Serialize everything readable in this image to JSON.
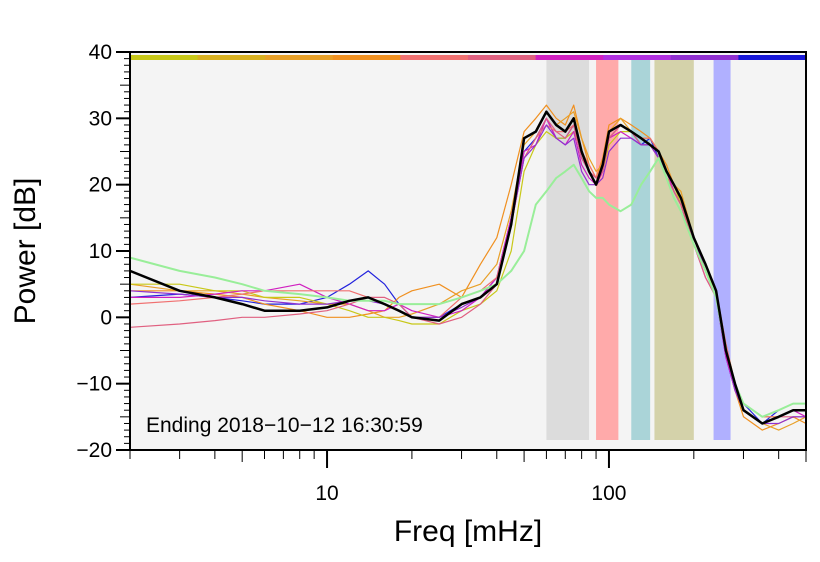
{
  "chart_data": {
    "type": "line",
    "xlabel": "Freq [mHz]",
    "ylabel": "Power [dB]",
    "xscale": "log",
    "xlim": [
      2.0,
      500
    ],
    "ylim": [
      -20,
      40
    ],
    "x_tick_labels": [
      {
        "value": 10,
        "label": "10"
      },
      {
        "value": 100,
        "label": "100"
      }
    ],
    "y_tick_labels": [
      {
        "value": 40,
        "label": "40"
      },
      {
        "value": 30,
        "label": "30"
      },
      {
        "value": 20,
        "label": "20"
      },
      {
        "value": 10,
        "label": "10"
      },
      {
        "value": 0,
        "label": "0"
      },
      {
        "value": -10,
        "label": "−10"
      },
      {
        "value": -20,
        "label": "−20"
      }
    ],
    "annotation": "Ending 2018−10−12 16:30:59",
    "plot_background": "#f4f4f4",
    "grid": false,
    "bands": [
      {
        "x0": 60,
        "x1": 85,
        "color": "#dcdcdc"
      },
      {
        "x0": 90,
        "x1": 108,
        "color": "#ffaaaa"
      },
      {
        "x0": 120,
        "x1": 140,
        "color": "#aad4d8"
      },
      {
        "x0": 145,
        "x1": 200,
        "color": "#d4d2aa"
      },
      {
        "x0": 235,
        "x1": 270,
        "color": "#b0b0ff"
      }
    ],
    "top_color_bar": [
      "#c8c818",
      "#d8b020",
      "#e8a028",
      "#f09020",
      "#f07070",
      "#e06080",
      "#d020c0",
      "#b030e0",
      "#9030d0",
      "#1818d8"
    ],
    "x": [
      2,
      3,
      4,
      5,
      6,
      8,
      10,
      12,
      14,
      16,
      18,
      20,
      25,
      30,
      35,
      40,
      45,
      50,
      55,
      60,
      65,
      70,
      75,
      80,
      85,
      90,
      95,
      100,
      110,
      120,
      130,
      140,
      150,
      160,
      170,
      180,
      200,
      220,
      240,
      260,
      280,
      300,
      350,
      400,
      450,
      500
    ],
    "series": [
      {
        "color": "#000000",
        "width": 2.5,
        "values": [
          7,
          4,
          3,
          2,
          1,
          1,
          1.5,
          2.5,
          3,
          2,
          1,
          0,
          -0.5,
          2,
          3,
          5,
          14,
          27,
          28,
          31,
          29,
          28,
          30,
          25,
          22,
          20,
          23,
          28,
          29,
          28,
          27,
          26,
          25,
          22,
          20,
          18,
          12,
          8,
          4,
          -5,
          -10,
          -14,
          -16,
          -15,
          -14,
          -14
        ]
      },
      {
        "color": "#2222dd",
        "width": 1.2,
        "values": [
          3,
          3.5,
          3,
          2.5,
          2,
          2,
          3,
          5,
          7,
          5,
          2,
          0,
          0,
          2,
          3,
          6,
          15,
          25,
          27,
          30,
          27,
          27,
          29,
          24,
          22,
          21,
          22,
          27,
          29,
          28,
          26,
          27,
          24,
          22,
          19,
          17,
          11,
          7,
          3,
          -6,
          -11,
          -13,
          -16,
          -14,
          -13,
          -13
        ]
      },
      {
        "color": "#f09020",
        "width": 1.2,
        "values": [
          4,
          4,
          3.5,
          3,
          2,
          1,
          0,
          0,
          0.5,
          1,
          3,
          4,
          5,
          3,
          8,
          12,
          20,
          28,
          30,
          32,
          30,
          29,
          32,
          27,
          23,
          21,
          24,
          29,
          30,
          29,
          28,
          27,
          25,
          23,
          20,
          18,
          12,
          7,
          3,
          -5,
          -11,
          -15,
          -17,
          -16,
          -15,
          -16
        ]
      },
      {
        "color": "#e8a028",
        "width": 1.2,
        "values": [
          5,
          4,
          4,
          3.5,
          3,
          2.5,
          2,
          2,
          1,
          0,
          0,
          0.5,
          2,
          4,
          5,
          8,
          16,
          26,
          28,
          31,
          29,
          30,
          31,
          27,
          24,
          22,
          23,
          28,
          30,
          28,
          27,
          27,
          25,
          22,
          20,
          19,
          12,
          7,
          3,
          -5,
          -10,
          -14,
          -16,
          -17,
          -16,
          -15
        ]
      },
      {
        "color": "#c8c818",
        "width": 1.2,
        "values": [
          5,
          5,
          4,
          4,
          3,
          3,
          2,
          1,
          0,
          0,
          -0.5,
          -1,
          -1,
          1,
          2,
          4,
          10,
          22,
          26,
          28,
          27,
          27,
          28,
          25,
          22,
          20,
          22,
          26,
          28,
          28,
          27,
          26,
          24,
          21,
          20,
          17,
          12,
          7,
          4,
          -4,
          -10,
          -13,
          -15,
          -15,
          -14,
          -14
        ]
      },
      {
        "color": "#d020c0",
        "width": 1.2,
        "values": [
          3,
          3,
          3.5,
          4,
          4,
          5,
          3,
          2,
          1,
          1,
          2,
          1,
          0,
          1,
          3,
          6,
          15,
          25,
          26,
          30,
          27,
          26,
          28,
          23,
          21,
          20,
          22,
          27,
          28,
          27,
          26,
          26,
          24,
          22,
          19,
          17,
          11,
          6,
          3,
          -6,
          -11,
          -14,
          -16,
          -15,
          -14,
          -15
        ]
      },
      {
        "color": "#f07070",
        "width": 1.2,
        "values": [
          2,
          2.5,
          3,
          3.5,
          4,
          4,
          4,
          4,
          3,
          2,
          1,
          0,
          0,
          3,
          4,
          6,
          14,
          24,
          27,
          29,
          28,
          28,
          29,
          25,
          23,
          21,
          23,
          27,
          29,
          28,
          27,
          27,
          25,
          22,
          20,
          18,
          12,
          8,
          4,
          -4,
          -10,
          -13,
          -15,
          -15,
          -14,
          -14
        ]
      },
      {
        "color": "#e06080",
        "width": 1.2,
        "values": [
          -1.5,
          -1,
          -0.5,
          0,
          0,
          0.5,
          1,
          2,
          3,
          3,
          2,
          0,
          -1,
          0,
          2,
          5,
          14,
          24,
          27,
          30,
          28,
          27,
          29,
          24,
          22,
          21,
          22,
          27,
          29,
          28,
          26,
          26,
          24,
          21,
          19,
          17,
          11,
          6,
          3,
          -5,
          -11,
          -14,
          -16,
          -15,
          -15,
          -15
        ]
      },
      {
        "color": "#9030d0",
        "width": 1.2,
        "values": [
          4,
          3.5,
          3,
          3,
          2.5,
          2,
          2,
          2.5,
          2.5,
          2,
          1,
          0,
          0,
          1.5,
          3,
          5,
          14,
          24,
          26,
          29,
          27,
          26,
          27,
          22,
          20,
          20,
          21,
          25,
          27,
          27,
          26,
          26,
          24,
          22,
          20,
          18,
          12,
          7,
          3,
          -5,
          -11,
          -14,
          -16,
          -16,
          -15,
          -15
        ]
      },
      {
        "color": "#99ee99",
        "width": 2.0,
        "values": [
          9,
          7,
          6,
          5,
          4,
          3.5,
          3,
          2.5,
          2.5,
          2.5,
          2,
          2,
          2,
          3,
          4,
          5,
          7,
          10,
          17,
          19,
          21,
          22,
          23,
          21,
          19,
          18,
          18,
          17,
          16,
          17,
          20,
          22,
          24,
          21,
          18,
          16,
          11,
          7,
          3,
          -5,
          -10,
          -13,
          -15,
          -14,
          -13,
          -13
        ]
      }
    ]
  }
}
